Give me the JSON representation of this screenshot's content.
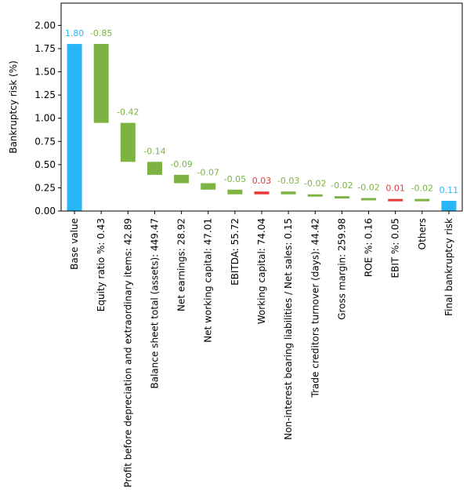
{
  "chart_data": {
    "type": "waterfall",
    "ylabel": "Bankruptcy risk (%)",
    "ylim": [
      0,
      2.24
    ],
    "yticks": [
      "0.00",
      "0.25",
      "0.50",
      "0.75",
      "1.00",
      "1.25",
      "1.50",
      "1.75",
      "2.00"
    ],
    "grid": false,
    "colors": {
      "total": "#29b6f6",
      "decrease": "#7cb342",
      "increase": "#e53935"
    },
    "bars": [
      {
        "label": "Base value",
        "kind": "total",
        "start": 0,
        "end": 1.8,
        "value_label": "1.80"
      },
      {
        "label": "Equity ratio %: 0.43",
        "kind": "decrease",
        "start": 1.8,
        "end": 0.95,
        "value_label": "-0.85"
      },
      {
        "label": "Profit before depreciation and extraordinary items: 42.89",
        "kind": "decrease",
        "start": 0.95,
        "end": 0.53,
        "value_label": "-0.42"
      },
      {
        "label": "Balance sheet total (assets): 449.47",
        "kind": "decrease",
        "start": 0.53,
        "end": 0.39,
        "value_label": "-0.14"
      },
      {
        "label": "Net earnings: 28.92",
        "kind": "decrease",
        "start": 0.39,
        "end": 0.3,
        "value_label": "-0.09"
      },
      {
        "label": "Net working capital: 47.01",
        "kind": "decrease",
        "start": 0.3,
        "end": 0.23,
        "value_label": "-0.07"
      },
      {
        "label": "EBITDA: 55.72",
        "kind": "decrease",
        "start": 0.23,
        "end": 0.18,
        "value_label": "-0.05"
      },
      {
        "label": "Working capital: 74.04",
        "kind": "increase",
        "start": 0.18,
        "end": 0.21,
        "value_label": "0.03"
      },
      {
        "label": "Non-interest bearing liabilities / Net sales: 0.15",
        "kind": "decrease",
        "start": 0.21,
        "end": 0.18,
        "value_label": "-0.03"
      },
      {
        "label": "Trade creditors turnover (days): 44.42",
        "kind": "decrease",
        "start": 0.18,
        "end": 0.16,
        "value_label": "-0.02"
      },
      {
        "label": "Gross margin: 259.98",
        "kind": "decrease",
        "start": 0.16,
        "end": 0.14,
        "value_label": "-0.02"
      },
      {
        "label": "ROE %: 0.16",
        "kind": "decrease",
        "start": 0.14,
        "end": 0.12,
        "value_label": "-0.02"
      },
      {
        "label": "EBIT %: 0.05",
        "kind": "increase",
        "start": 0.12,
        "end": 0.13,
        "value_label": "0.01"
      },
      {
        "label": "Others",
        "kind": "decrease",
        "start": 0.13,
        "end": 0.11,
        "value_label": "-0.02"
      },
      {
        "label": "Final bankruptcy risk",
        "kind": "total",
        "start": 0,
        "end": 0.11,
        "value_label": "0.11"
      }
    ]
  }
}
